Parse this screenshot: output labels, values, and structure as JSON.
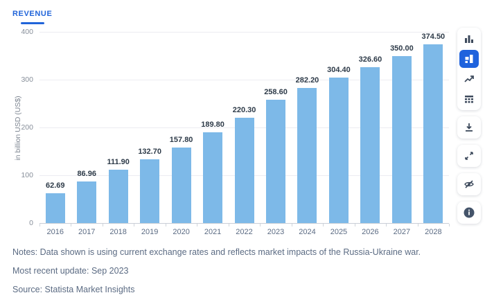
{
  "tabs": {
    "revenue_label": "REVENUE"
  },
  "chart_data": {
    "type": "bar",
    "title": "",
    "categories": [
      "2016",
      "2017",
      "2018",
      "2019",
      "2020",
      "2021",
      "2022",
      "2023",
      "2024",
      "2025",
      "2026",
      "2027",
      "2028"
    ],
    "values": [
      62.69,
      86.96,
      111.9,
      132.7,
      157.8,
      189.8,
      220.3,
      258.6,
      282.2,
      304.4,
      326.6,
      350.0,
      374.5
    ],
    "value_labels": [
      "62.69",
      "86.96",
      "111.90",
      "132.70",
      "157.80",
      "189.80",
      "220.30",
      "258.60",
      "282.20",
      "304.40",
      "326.60",
      "350.00",
      "374.50"
    ],
    "xlabel": "",
    "ylabel": "in billion USD (US$)",
    "ylim": [
      0,
      400
    ],
    "yticks": [
      0,
      100,
      200,
      300,
      400
    ],
    "grid": true,
    "legend": "none",
    "bar_color": "#7db9e8"
  },
  "sidebar": {
    "icons": [
      {
        "name": "column-chart",
        "selected": false
      },
      {
        "name": "bar-blocks-chart",
        "selected": true
      },
      {
        "name": "line-chart",
        "selected": false
      },
      {
        "name": "table-view",
        "selected": false
      },
      {
        "name": "download",
        "selected": false
      },
      {
        "name": "fullscreen",
        "selected": false
      },
      {
        "name": "eye-off",
        "selected": false
      },
      {
        "name": "info",
        "selected": false
      }
    ]
  },
  "notes": {
    "line1": "Notes: Data shown is using current exchange rates and reflects market impacts of the Russia-Ukraine war.",
    "line2": "Most recent update: Sep 2023",
    "line3": "Source: Statista Market Insights"
  },
  "colors": {
    "accent": "#2064d9",
    "bar": "#7db9e8"
  }
}
